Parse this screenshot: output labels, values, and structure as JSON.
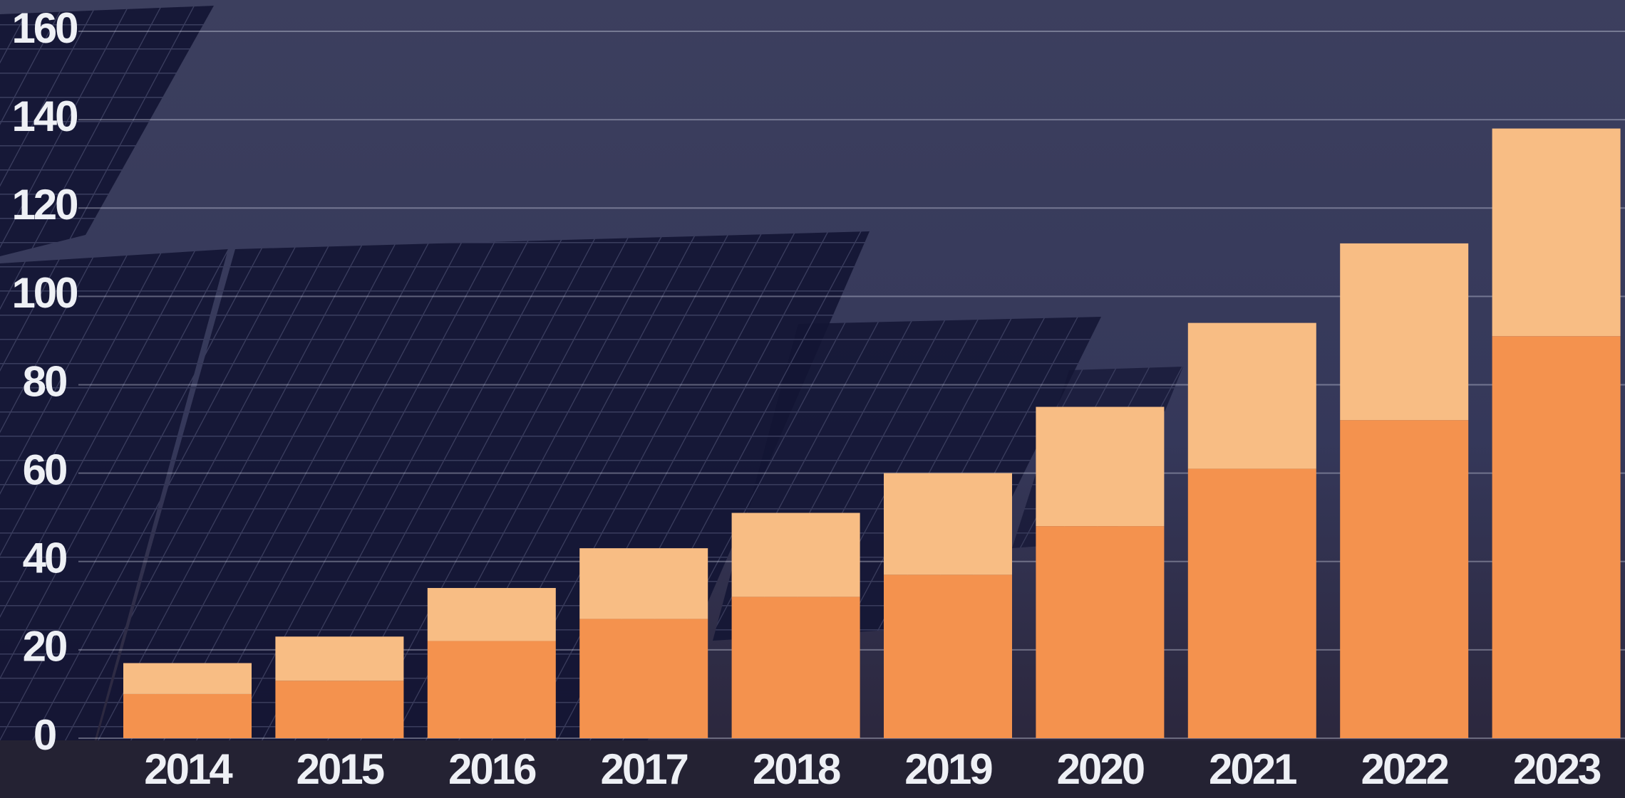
{
  "chart_data": {
    "type": "bar",
    "stacked": true,
    "categories": [
      "2014",
      "2015",
      "2016",
      "2017",
      "2018",
      "2019",
      "2020",
      "2021",
      "2022",
      "2023"
    ],
    "series": [
      {
        "color": "#f4924e",
        "values": [
          10,
          13,
          22,
          27,
          32,
          37,
          48,
          61,
          72,
          91
        ]
      },
      {
        "color": "#f8bd84",
        "values": [
          7,
          10,
          12,
          16,
          19,
          23,
          27,
          33,
          40,
          47
        ]
      }
    ],
    "ylim": [
      0,
      160
    ],
    "yticks": [
      0,
      20,
      40,
      60,
      80,
      100,
      120,
      140,
      160
    ],
    "grid": true
  }
}
